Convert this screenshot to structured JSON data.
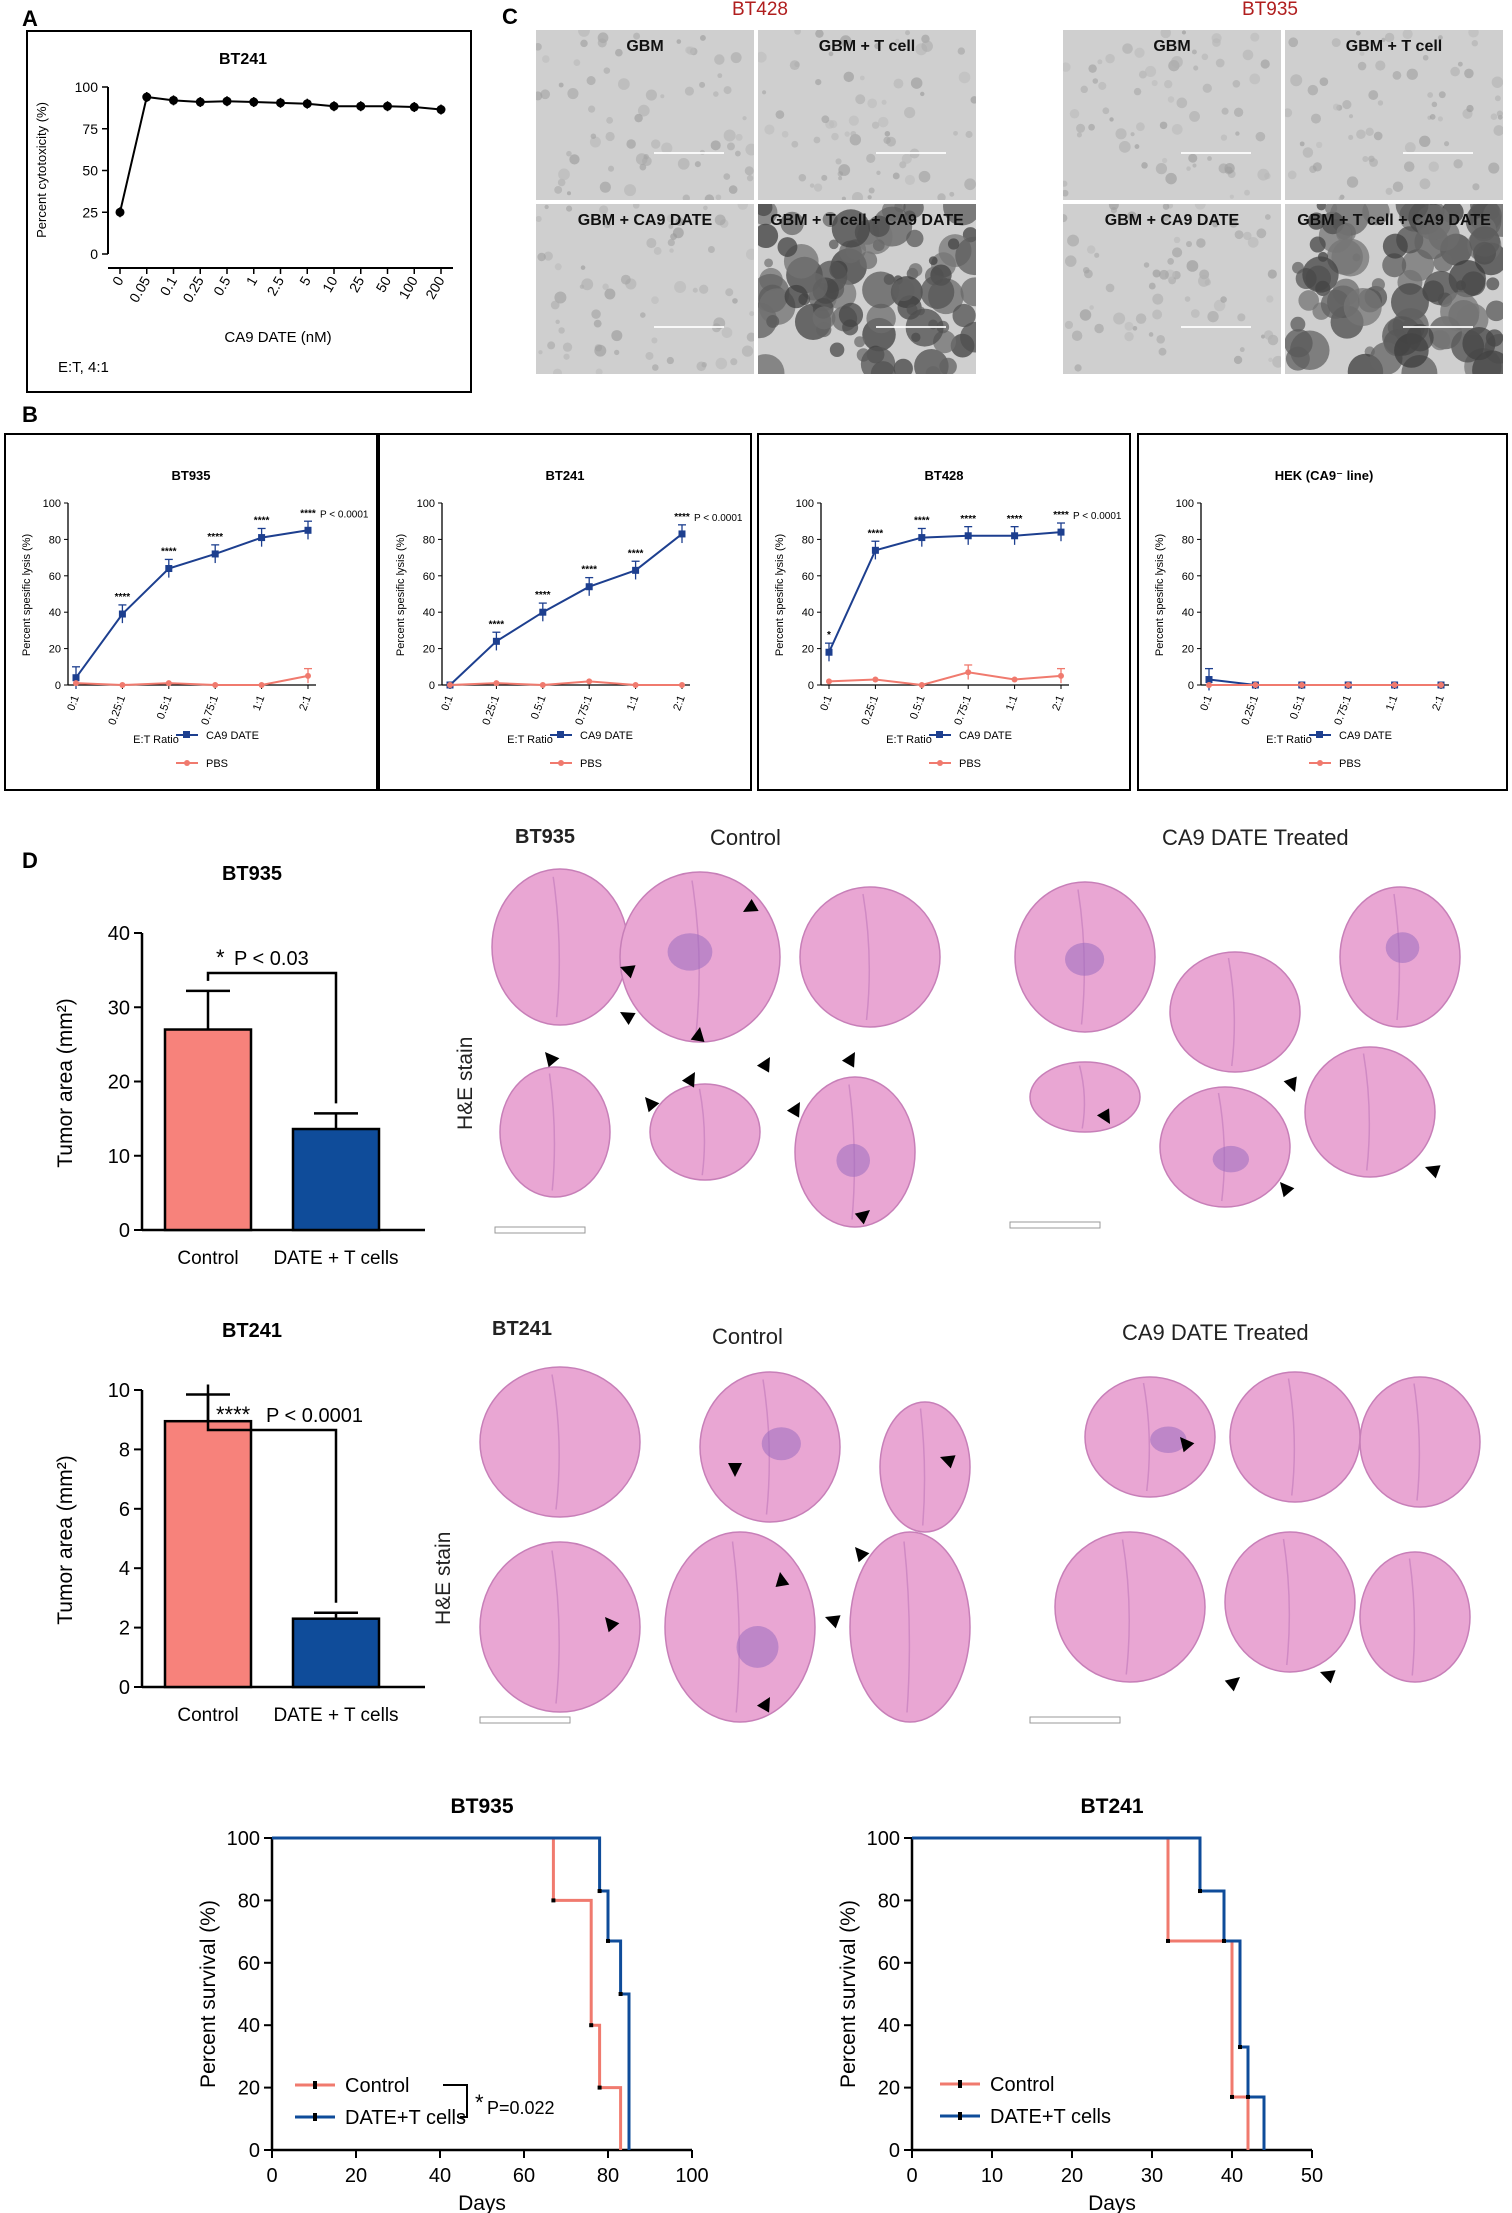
{
  "panel_letters": {
    "a": "A",
    "b": "B",
    "c": "C",
    "d": "D"
  },
  "panel_c": {
    "line_left": "BT428",
    "line_right": "BT935",
    "conditions": [
      "GBM",
      "GBM + T cell",
      "GBM + CA9 DATE",
      "GBM + T cell + CA9 DATE"
    ]
  },
  "histology": {
    "control_label": "Control",
    "treated_label": "CA9 DATE Treated",
    "stain_label": "H&E stain",
    "row1_line": "BT935",
    "row2_line": "BT241"
  },
  "colors": {
    "blue_series": "#1d3f8f",
    "red_series": "#f07a6e",
    "bar_red": "#f7827b",
    "bar_blue": "#0f4c9a",
    "he_pink": "#e9a6d3",
    "he_purple": "#9a6cc0"
  },
  "chart_data": [
    {
      "id": "A",
      "type": "line",
      "title": "BT241",
      "xlabel": "CA9 DATE (nM)",
      "ylabel": "Percent cytotoxicity (%)",
      "note": "E:T, 4:1",
      "categories": [
        "0",
        "0.05",
        "0.1",
        "0.25",
        "0.5",
        "1",
        "2.5",
        "5",
        "10",
        "25",
        "50",
        "100",
        "200"
      ],
      "values": [
        25,
        94,
        92,
        91,
        91.5,
        91,
        90.5,
        90,
        88.5,
        88.5,
        88.5,
        88,
        86.5
      ],
      "ylim": [
        0,
        100
      ],
      "yticks": [
        0,
        25,
        50,
        75,
        100
      ]
    },
    {
      "id": "B1",
      "type": "line",
      "title": "BT935",
      "xlabel": "E:T Ratio",
      "ylabel": "Percent spesific lysis (%)",
      "categories": [
        "0:1",
        "0.25:1",
        "0.5:1",
        "0.75:1",
        "1:1",
        "2:1"
      ],
      "series": [
        {
          "name": "CA9 DATE",
          "values": [
            4,
            39,
            64,
            72,
            81,
            85
          ]
        },
        {
          "name": "PBS",
          "values": [
            1,
            0,
            1,
            0,
            0,
            5
          ]
        }
      ],
      "significance": [
        "",
        "****",
        "****",
        "****",
        "****",
        "****"
      ],
      "pvalue": "P < 0.0001",
      "ylim": [
        0,
        100
      ],
      "yticks": [
        0,
        20,
        40,
        60,
        80,
        100
      ]
    },
    {
      "id": "B2",
      "type": "line",
      "title": "BT241",
      "xlabel": "E:T Ratio",
      "ylabel": "Percent spesific lysis (%)",
      "categories": [
        "0:1",
        "0.25:1",
        "0.5:1",
        "0.75:1",
        "1:1",
        "2:1"
      ],
      "series": [
        {
          "name": "CA9 DATE",
          "values": [
            0,
            24,
            40,
            54,
            63,
            83
          ]
        },
        {
          "name": "PBS",
          "values": [
            0,
            1,
            0,
            2,
            0,
            0
          ]
        }
      ],
      "significance": [
        "",
        "****",
        "****",
        "****",
        "****",
        "****"
      ],
      "pvalue": "P < 0.0001",
      "ylim": [
        0,
        100
      ],
      "yticks": [
        0,
        20,
        40,
        60,
        80,
        100
      ]
    },
    {
      "id": "B3",
      "type": "line",
      "title": "BT428",
      "xlabel": "E:T Ratio",
      "ylabel": "Percent spesific lysis (%)",
      "categories": [
        "0:1",
        "0.25:1",
        "0.5:1",
        "0.75:1",
        "1:1",
        "2:1"
      ],
      "series": [
        {
          "name": "CA9 DATE",
          "values": [
            18,
            74,
            81,
            82,
            82,
            84
          ]
        },
        {
          "name": "PBS",
          "values": [
            2,
            3,
            0,
            7,
            3,
            5
          ]
        }
      ],
      "significance": [
        "*",
        "****",
        "****",
        "****",
        "****",
        "****"
      ],
      "pvalue": "P < 0.0001",
      "ylim": [
        0,
        100
      ],
      "yticks": [
        0,
        20,
        40,
        60,
        80,
        100
      ]
    },
    {
      "id": "B4",
      "type": "line",
      "title": "HEK (CA9⁻ line)",
      "xlabel": "E:T Ratio",
      "ylabel": "Percent spesific lysis (%)",
      "categories": [
        "0:1",
        "0.25:1",
        "0.5:1",
        "0.75:1",
        "1:1",
        "2:1"
      ],
      "series": [
        {
          "name": "CA9 DATE",
          "values": [
            3,
            0,
            0,
            0,
            0,
            0
          ]
        },
        {
          "name": "PBS",
          "values": [
            0,
            0,
            0,
            0,
            0,
            0
          ]
        }
      ],
      "significance": [
        "",
        "",
        "",
        "",
        "",
        ""
      ],
      "pvalue": "",
      "ylim": [
        0,
        100
      ],
      "yticks": [
        0,
        20,
        40,
        60,
        80,
        100
      ]
    },
    {
      "id": "D1",
      "type": "bar",
      "title": "BT935",
      "categories": [
        "Control",
        "DATE + T cells"
      ],
      "values": [
        27,
        13.6
      ],
      "errors": [
        5.2,
        2.1
      ],
      "ylabel": "Tumor area (mm²)",
      "ylim": [
        0,
        40
      ],
      "yticks": [
        0,
        10,
        20,
        30,
        40
      ],
      "significance": "*",
      "pvalue": "P < 0.03"
    },
    {
      "id": "D2",
      "type": "bar",
      "title": "BT241",
      "categories": [
        "Control",
        "DATE + T cells"
      ],
      "values": [
        8.95,
        2.3
      ],
      "errors": [
        0.9,
        0.2
      ],
      "ylabel": "Tumor area (mm²)",
      "ylim": [
        0,
        10
      ],
      "yticks": [
        0,
        2,
        4,
        6,
        8,
        10
      ],
      "significance": "****",
      "pvalue": "P < 0.0001"
    },
    {
      "id": "S1",
      "type": "line",
      "title": "BT935",
      "xlabel": "Days",
      "ylabel": "Percent survival (%)",
      "xlim": [
        0,
        100
      ],
      "xticks": [
        0,
        20,
        40,
        60,
        80,
        100
      ],
      "ylim": [
        0,
        100
      ],
      "yticks": [
        0,
        20,
        40,
        60,
        80,
        100
      ],
      "series": [
        {
          "name": "Control",
          "steps": [
            [
              0,
              100
            ],
            [
              67,
              100
            ],
            [
              67,
              80
            ],
            [
              76,
              80
            ],
            [
              76,
              40
            ],
            [
              78,
              40
            ],
            [
              78,
              20
            ],
            [
              83,
              20
            ],
            [
              83,
              0
            ]
          ]
        },
        {
          "name": "DATE+T cells",
          "steps": [
            [
              0,
              100
            ],
            [
              78,
              100
            ],
            [
              78,
              83
            ],
            [
              80,
              83
            ],
            [
              80,
              67
            ],
            [
              83,
              67
            ],
            [
              83,
              50
            ],
            [
              85,
              50
            ],
            [
              85,
              0
            ]
          ]
        }
      ],
      "significance": "*",
      "pvalue": "P=0.022"
    },
    {
      "id": "S2",
      "type": "line",
      "title": "BT241",
      "xlabel": "Days",
      "ylabel": "Percent survival (%)",
      "xlim": [
        0,
        50
      ],
      "xticks": [
        0,
        10,
        20,
        30,
        40,
        50
      ],
      "ylim": [
        0,
        100
      ],
      "yticks": [
        0,
        20,
        40,
        60,
        80,
        100
      ],
      "series": [
        {
          "name": "Control",
          "steps": [
            [
              0,
              100
            ],
            [
              32,
              100
            ],
            [
              32,
              67
            ],
            [
              40,
              67
            ],
            [
              40,
              17
            ],
            [
              42,
              17
            ],
            [
              42,
              0
            ]
          ]
        },
        {
          "name": "DATE+T cells",
          "steps": [
            [
              0,
              100
            ],
            [
              36,
              100
            ],
            [
              36,
              83
            ],
            [
              39,
              83
            ],
            [
              39,
              67
            ],
            [
              41,
              67
            ],
            [
              41,
              33
            ],
            [
              42,
              33
            ],
            [
              42,
              17
            ],
            [
              44,
              17
            ],
            [
              44,
              0
            ]
          ]
        }
      ]
    }
  ]
}
